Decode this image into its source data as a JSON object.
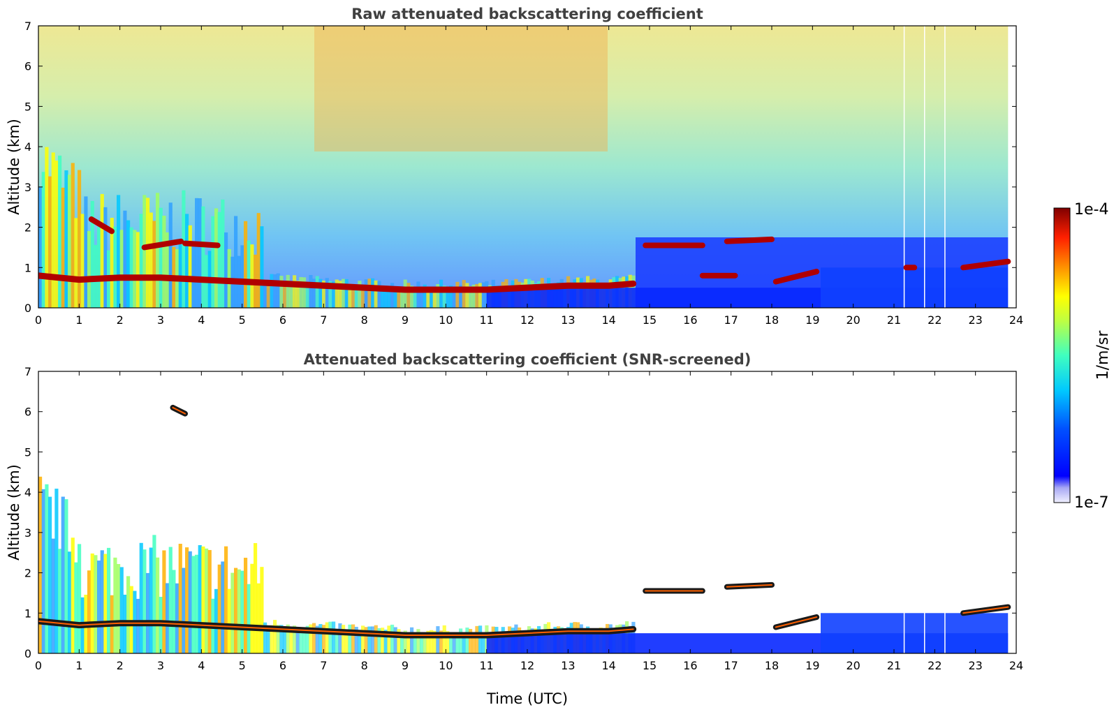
{
  "chart_data": [
    {
      "type": "heatmap",
      "title": "Raw attenuated backscattering coefficient",
      "xlabel": "",
      "ylabel": "Altitude (km)",
      "xlim": [
        0,
        24
      ],
      "ylim": [
        0,
        7
      ],
      "xticks": [
        "0",
        "1",
        "2",
        "3",
        "4",
        "5",
        "6",
        "7",
        "8",
        "9",
        "10",
        "11",
        "12",
        "13",
        "14",
        "15",
        "16",
        "17",
        "18",
        "19",
        "20",
        "21",
        "22",
        "23",
        "24"
      ],
      "yticks": [
        "0",
        "1",
        "2",
        "3",
        "4",
        "5",
        "6",
        "7"
      ],
      "grid": false,
      "features": [
        {
          "kind": "boundary-layer",
          "x": [
            0,
            1,
            2,
            3,
            4,
            5,
            6,
            7,
            8,
            9,
            10,
            11,
            12,
            13,
            14,
            14.6
          ],
          "y": [
            0.8,
            0.7,
            0.75,
            0.75,
            0.7,
            0.65,
            0.6,
            0.55,
            0.5,
            0.45,
            0.45,
            0.45,
            0.5,
            0.55,
            0.55,
            0.6
          ]
        },
        {
          "kind": "cloud-layer",
          "x": [
            1.3,
            1.8
          ],
          "y": [
            2.2,
            1.9
          ]
        },
        {
          "kind": "cloud-layer",
          "x": [
            2.6,
            3.5
          ],
          "y": [
            1.5,
            1.65
          ]
        },
        {
          "kind": "cloud-layer",
          "x": [
            3.6,
            4.4
          ],
          "y": [
            1.6,
            1.55
          ]
        },
        {
          "kind": "cloud-layer",
          "x": [
            14.9,
            16.3
          ],
          "y": [
            1.55,
            1.55
          ]
        },
        {
          "kind": "cloud-layer",
          "x": [
            16.9,
            18.0
          ],
          "y": [
            1.65,
            1.7
          ]
        },
        {
          "kind": "cloud-layer",
          "x": [
            16.3,
            17.1
          ],
          "y": [
            0.8,
            0.8
          ]
        },
        {
          "kind": "cloud-layer",
          "x": [
            18.1,
            19.1
          ],
          "y": [
            0.65,
            0.9
          ]
        },
        {
          "kind": "cloud-layer",
          "x": [
            21.3,
            21.5
          ],
          "y": [
            1.0,
            1.0
          ]
        },
        {
          "kind": "cloud-layer",
          "x": [
            22.7,
            23.8
          ],
          "y": [
            1.0,
            1.15
          ]
        }
      ]
    },
    {
      "type": "heatmap",
      "title": "Attenuated backscattering coefficient (SNR-screened)",
      "xlabel": "Time (UTC)",
      "ylabel": "Altitude (km)",
      "xlim": [
        0,
        24
      ],
      "ylim": [
        0,
        7
      ],
      "xticks": [
        "0",
        "1",
        "2",
        "3",
        "4",
        "5",
        "6",
        "7",
        "8",
        "9",
        "10",
        "11",
        "12",
        "13",
        "14",
        "15",
        "16",
        "17",
        "18",
        "19",
        "20",
        "21",
        "22",
        "23",
        "24"
      ],
      "yticks": [
        "0",
        "1",
        "2",
        "3",
        "4",
        "5",
        "6",
        "7"
      ],
      "grid": false,
      "features": [
        {
          "kind": "boundary-layer",
          "x": [
            0,
            1,
            2,
            3,
            4,
            5,
            6,
            7,
            8,
            9,
            10,
            11,
            12,
            13,
            14,
            14.6
          ],
          "y": [
            0.8,
            0.7,
            0.75,
            0.75,
            0.7,
            0.65,
            0.6,
            0.55,
            0.5,
            0.45,
            0.45,
            0.45,
            0.5,
            0.55,
            0.55,
            0.6
          ]
        },
        {
          "kind": "cloud-layer",
          "x": [
            14.9,
            16.3
          ],
          "y": [
            1.55,
            1.55
          ]
        },
        {
          "kind": "cloud-layer",
          "x": [
            16.9,
            18.0
          ],
          "y": [
            1.65,
            1.7
          ]
        },
        {
          "kind": "cloud-layer",
          "x": [
            18.1,
            19.1
          ],
          "y": [
            0.65,
            0.9
          ]
        },
        {
          "kind": "cloud-layer",
          "x": [
            22.7,
            23.8
          ],
          "y": [
            1.0,
            1.15
          ]
        },
        {
          "kind": "isolated-echo",
          "x": [
            3.3,
            3.6
          ],
          "y": [
            6.1,
            5.95
          ]
        }
      ]
    }
  ],
  "colorbar": {
    "max_label": "1e-4",
    "min_label": "1e-7",
    "unit_label": "1/m/sr",
    "colormap": "jet",
    "colors": [
      "#e8e8f8",
      "#b0b0f0",
      "#0000ff",
      "#0060ff",
      "#00c0ff",
      "#40ffc0",
      "#a0ff60",
      "#ffff00",
      "#ffa000",
      "#ff3000",
      "#b00000",
      "#800000"
    ]
  }
}
